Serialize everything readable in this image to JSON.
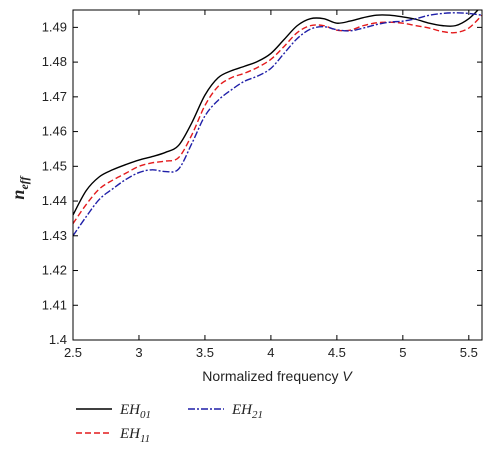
{
  "chart_data": {
    "type": "line",
    "xlabel_main": "Normalized frequency ",
    "xlabel_var": "V",
    "ylabel_main": "n",
    "ylabel_sub": "eff",
    "xlim": [
      2.5,
      5.6
    ],
    "ylim": [
      1.4,
      1.495
    ],
    "xticks": [
      2.5,
      3,
      3.5,
      4,
      4.5,
      5,
      5.5
    ],
    "xtick_labels": [
      "2.5",
      "3",
      "3.5",
      "4",
      "4.5",
      "5",
      "5.5"
    ],
    "yticks": [
      1.4,
      1.41,
      1.42,
      1.43,
      1.44,
      1.45,
      1.46,
      1.47,
      1.48,
      1.49
    ],
    "ytick_labels": [
      "1.4",
      "1.41",
      "1.42",
      "1.43",
      "1.44",
      "1.45",
      "1.46",
      "1.47",
      "1.48",
      "1.49"
    ],
    "grid": false,
    "legend_position": "bottom-left",
    "series": [
      {
        "name_main": "EH",
        "name_sub": "01",
        "color": "#000000",
        "style": "solid",
        "x": [
          2.5,
          2.6,
          2.7,
          2.8,
          2.9,
          3.0,
          3.1,
          3.2,
          3.3,
          3.4,
          3.5,
          3.6,
          3.7,
          3.8,
          3.9,
          4.0,
          4.1,
          4.2,
          4.3,
          4.4,
          4.5,
          4.6,
          4.7,
          4.8,
          4.9,
          5.0,
          5.1,
          5.2,
          5.3,
          5.4,
          5.5,
          5.6
        ],
        "y": [
          1.436,
          1.443,
          1.447,
          1.449,
          1.4505,
          1.4518,
          1.4528,
          1.454,
          1.456,
          1.4625,
          1.4705,
          1.4755,
          1.4775,
          1.4788,
          1.4802,
          1.4825,
          1.4865,
          1.4905,
          1.4925,
          1.4925,
          1.4912,
          1.4918,
          1.4928,
          1.4935,
          1.4935,
          1.493,
          1.4923,
          1.4912,
          1.4905,
          1.4905,
          1.4925,
          1.4962
        ]
      },
      {
        "name_main": "EH",
        "name_sub": "11",
        "color": "#e31a1c",
        "style": "dashed",
        "x": [
          2.5,
          2.6,
          2.7,
          2.8,
          2.9,
          3.0,
          3.1,
          3.2,
          3.3,
          3.4,
          3.5,
          3.6,
          3.7,
          3.8,
          3.9,
          4.0,
          4.1,
          4.2,
          4.3,
          4.4,
          4.5,
          4.6,
          4.7,
          4.8,
          4.9,
          5.0,
          5.1,
          5.2,
          5.3,
          5.4,
          5.5,
          5.6
        ],
        "y": [
          1.4335,
          1.439,
          1.4435,
          1.446,
          1.448,
          1.45,
          1.451,
          1.4515,
          1.4525,
          1.459,
          1.4675,
          1.473,
          1.4755,
          1.4768,
          1.4785,
          1.4808,
          1.4845,
          1.4885,
          1.4905,
          1.4905,
          1.4892,
          1.4892,
          1.4905,
          1.4913,
          1.4915,
          1.4912,
          1.4905,
          1.4898,
          1.4888,
          1.4885,
          1.4898,
          1.4935
        ]
      },
      {
        "name_main": "EH",
        "name_sub": "21",
        "color": "#1f1fa8",
        "style": "dashdot",
        "x": [
          2.5,
          2.6,
          2.7,
          2.8,
          2.9,
          3.0,
          3.1,
          3.2,
          3.3,
          3.4,
          3.5,
          3.6,
          3.7,
          3.8,
          3.9,
          4.0,
          4.1,
          4.2,
          4.3,
          4.4,
          4.5,
          4.6,
          4.7,
          4.8,
          4.9,
          5.0,
          5.1,
          5.2,
          5.3,
          5.4,
          5.5,
          5.6
        ],
        "y": [
          1.43,
          1.4355,
          1.4405,
          1.4435,
          1.4462,
          1.4482,
          1.449,
          1.4485,
          1.4492,
          1.4565,
          1.4645,
          1.469,
          1.472,
          1.4745,
          1.476,
          1.4782,
          1.4825,
          1.4868,
          1.4895,
          1.4902,
          1.4893,
          1.489,
          1.4898,
          1.4908,
          1.4915,
          1.4918,
          1.4925,
          1.4935,
          1.494,
          1.4942,
          1.494,
          1.4935
        ]
      }
    ]
  }
}
